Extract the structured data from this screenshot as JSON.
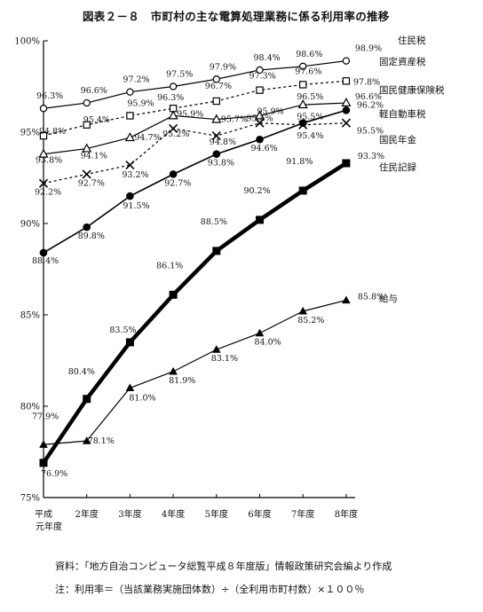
{
  "title": "図表２－８　市町村の主な電算処理業務に係る利用率の推移",
  "source_note": "資料：「地方自治コンピュータ総覧平成８年度版」情報政策研究会編より作成",
  "formula_note": "注：利用率＝（当該業務実施団体数）÷（全利用市町村数）×１００％",
  "chart_data": {
    "type": "line",
    "title": "図表２－８　市町村の主な電算処理業務に係る利用率の推移",
    "xlabel": "",
    "ylabel": "",
    "ylim": [
      75,
      100
    ],
    "yticks": [
      "75%",
      "80%",
      "85%",
      "90%",
      "95%",
      "100%"
    ],
    "categories": [
      "平成元年度",
      "2年度",
      "3年度",
      "4年度",
      "5年度",
      "6年度",
      "7年度",
      "8年度"
    ],
    "x_tick_labels": [
      [
        "平成",
        "元年度"
      ],
      [
        "2年度"
      ],
      [
        "3年度"
      ],
      [
        "4年度"
      ],
      [
        "5年度"
      ],
      [
        "6年度"
      ],
      [
        "7年度"
      ],
      [
        "8年度"
      ]
    ],
    "grid": false,
    "series": [
      {
        "name": "住民税",
        "values": [
          96.3,
          96.6,
          97.2,
          97.5,
          97.9,
          98.4,
          98.6,
          98.9
        ],
        "marker": "open-circle",
        "line": "solid",
        "labels": [
          "96.3%",
          "96.6%",
          "97.2%",
          "97.5%",
          "97.9%",
          "98.4%",
          "98.6%",
          "98.9%"
        ]
      },
      {
        "name": "固定資産税",
        "values": [
          94.8,
          95.4,
          95.9,
          96.3,
          96.7,
          97.3,
          97.6,
          97.8
        ],
        "marker": "open-square",
        "line": "dashed",
        "labels": [
          "94.8%",
          "95.4%",
          "95.9%",
          "96.3%",
          "96.7%",
          "97.3%",
          "97.6%",
          "97.8%"
        ]
      },
      {
        "name": "国民健康保険税",
        "values": [
          93.8,
          94.1,
          94.7,
          95.9,
          95.7,
          95.9,
          96.5,
          96.6
        ],
        "marker": "open-triangle",
        "line": "solid",
        "labels": [
          "93.8%",
          "94.1%",
          "94.7%",
          "95.9%",
          "95.7%",
          "95.9%",
          "96.5%",
          "96.6%"
        ]
      },
      {
        "name": "軽自動車税",
        "values": [
          88.4,
          89.8,
          91.5,
          92.7,
          93.8,
          94.6,
          95.5,
          96.2
        ],
        "marker": "filled-circle",
        "line": "solid",
        "labels": [
          "88.4%",
          "89.8%",
          "91.5%",
          "92.7%",
          "93.8%",
          "94.6%",
          "95.5%",
          "96.2%"
        ]
      },
      {
        "name": "国民年金",
        "values": [
          92.2,
          92.7,
          93.2,
          95.2,
          94.8,
          95.5,
          95.4,
          95.5
        ],
        "marker": "x",
        "line": "dashed",
        "labels": [
          "92.2%",
          "92.7%",
          "93.2%",
          "95.2%",
          "94.8%",
          "95.5%",
          "95.4%",
          "95.5%"
        ]
      },
      {
        "name": "住民記録",
        "values": [
          76.9,
          80.4,
          83.5,
          86.1,
          88.5,
          90.2,
          91.8,
          93.3
        ],
        "marker": "filled-square",
        "line": "thick",
        "labels": [
          "76.9%",
          "80.4%",
          "83.5%",
          "86.1%",
          "88.5%",
          "90.2%",
          "91.8%",
          "93.3%"
        ]
      },
      {
        "name": "給与",
        "values": [
          77.9,
          78.1,
          81.0,
          81.9,
          83.1,
          84.0,
          85.2,
          85.8
        ],
        "marker": "filled-triangle",
        "line": "solid",
        "labels": [
          "77.9%",
          "78.1%",
          "81.0%",
          "81.9%",
          "83.1%",
          "84.0%",
          "85.2%",
          "85.8%"
        ]
      }
    ]
  }
}
